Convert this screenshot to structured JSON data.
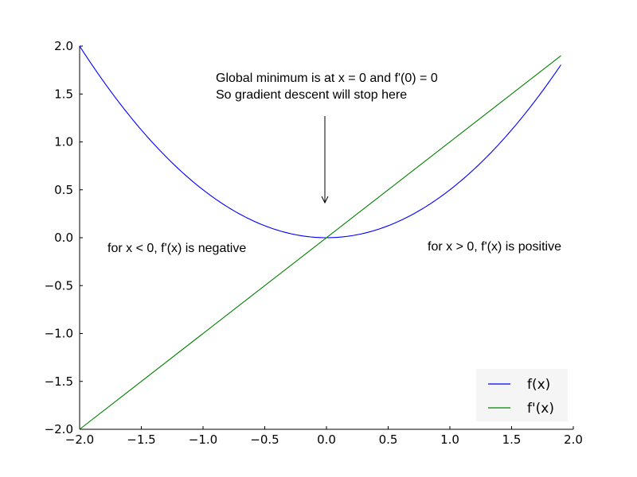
{
  "chart_data": {
    "type": "line",
    "title": "",
    "xlabel": "",
    "ylabel": "",
    "xlim": [
      -2.0,
      2.0
    ],
    "ylim": [
      -2.0,
      2.0
    ],
    "grid": false,
    "x_ticks": [
      "−2.0",
      "−1.5",
      "−1.0",
      "−0.5",
      "0.0",
      "0.5",
      "1.0",
      "1.5",
      "2.0"
    ],
    "y_ticks": [
      "−2.0",
      "−1.5",
      "−1.0",
      "−0.5",
      "0.0",
      "0.5",
      "1.0",
      "1.5",
      "2.0"
    ],
    "x_tick_values": [
      -2.0,
      -1.5,
      -1.0,
      -0.5,
      0.0,
      0.5,
      1.0,
      1.5,
      2.0
    ],
    "y_tick_values": [
      -2.0,
      -1.5,
      -1.0,
      -0.5,
      0.0,
      0.5,
      1.0,
      1.5,
      2.0
    ],
    "x_range": [
      -2.0,
      1.9
    ],
    "series": [
      {
        "name": "f(x)",
        "color": "#0000ff",
        "formula": "x^2/2",
        "x": [
          -2.0,
          -1.8,
          -1.6,
          -1.4,
          -1.2,
          -1.0,
          -0.8,
          -0.6,
          -0.4,
          -0.2,
          0.0,
          0.2,
          0.4,
          0.6,
          0.8,
          1.0,
          1.2,
          1.4,
          1.6,
          1.8,
          1.9
        ],
        "y": [
          2.0,
          1.62,
          1.28,
          0.98,
          0.72,
          0.5,
          0.32,
          0.18,
          0.08,
          0.02,
          0.0,
          0.02,
          0.08,
          0.18,
          0.32,
          0.5,
          0.72,
          0.98,
          1.28,
          1.62,
          1.805
        ]
      },
      {
        "name": "f'(x)",
        "color": "#008000",
        "formula": "x",
        "x": [
          -2.0,
          1.9
        ],
        "y": [
          -2.0,
          1.9
        ]
      }
    ],
    "legend_position": "lower right",
    "annotations": [
      {
        "text_lines": [
          "Global minimum is at x = 0 and f'(0) = 0",
          "So gradient descent will stop here"
        ],
        "arrow": true
      },
      {
        "text_lines": [
          "for x < 0, f'(x) is negative"
        ]
      },
      {
        "text_lines": [
          "for x > 0, f'(x) is positive"
        ]
      }
    ]
  }
}
